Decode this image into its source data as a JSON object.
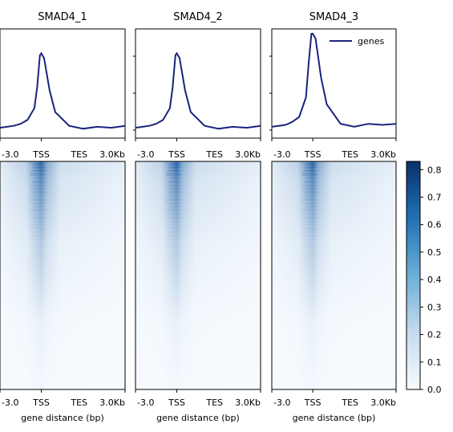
{
  "chart_data": {
    "type": "heatmap",
    "panels": [
      {
        "title": "SMAD4_1",
        "xlabel": "gene distance (bp)"
      },
      {
        "title": "SMAD4_2",
        "xlabel": "gene distance (bp)"
      },
      {
        "title": "SMAD4_3",
        "xlabel": "gene distance (bp)"
      }
    ],
    "x_ticks": [
      "-3.0",
      "TSS",
      "TES",
      "3.0Kb"
    ],
    "legend": {
      "entries": [
        "genes"
      ],
      "placement": "top-right of SMAD4_3 profile"
    },
    "profile": {
      "series_color": "#1a237e",
      "x": [
        -3.0,
        -2.5,
        -2.0,
        -1.5,
        -1.0,
        -0.5,
        -0.3,
        -0.1,
        0.0,
        0.1,
        0.3,
        0.5,
        1.0,
        1.5,
        2.0,
        2.5,
        3.0
      ],
      "values": [
        [
          0.04,
          0.05,
          0.06,
          0.08,
          0.12,
          0.24,
          0.45,
          0.78,
          0.8,
          0.75,
          0.42,
          0.2,
          0.06,
          0.03,
          0.05,
          0.04,
          0.06
        ],
        [
          0.04,
          0.05,
          0.06,
          0.08,
          0.12,
          0.24,
          0.45,
          0.78,
          0.8,
          0.75,
          0.42,
          0.2,
          0.06,
          0.03,
          0.05,
          0.04,
          0.06
        ],
        [
          0.05,
          0.06,
          0.07,
          0.1,
          0.15,
          0.35,
          0.7,
          1.0,
          1.0,
          0.95,
          0.55,
          0.28,
          0.08,
          0.05,
          0.08,
          0.07,
          0.08
        ]
      ]
    },
    "colorbar": {
      "colormap": "Blues",
      "range": [
        0.0,
        0.83
      ],
      "ticks": [
        "0.0",
        "0.1",
        "0.2",
        "0.3",
        "0.4",
        "0.5",
        "0.6",
        "0.7",
        "0.8"
      ]
    }
  }
}
